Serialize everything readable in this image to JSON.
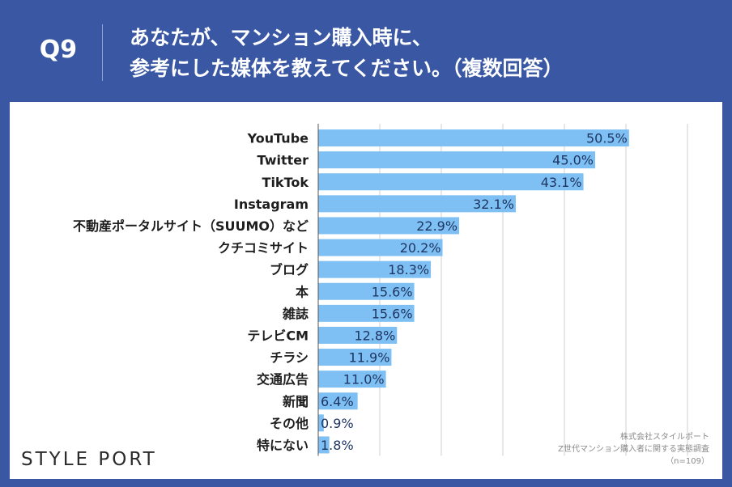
{
  "header": {
    "q_label": "Q9",
    "title_line1": "あなたが、マンション購入時に、",
    "title_line2": "参考にした媒体を教えてください。（複数回答）"
  },
  "brand": "STYLE PORT",
  "source": {
    "line1": "株式会社スタイルポート",
    "line2": "Z世代マンション購入者に関する実態調査",
    "line3": "（n=109）"
  },
  "colors": {
    "bar": "#7ec0f3",
    "header_bg": "#3a57a4",
    "grid": "#cfcfcf"
  },
  "chart_data": {
    "type": "bar",
    "orientation": "horizontal",
    "title": "",
    "xlabel": "",
    "ylabel": "",
    "xlim": [
      0,
      60
    ],
    "grid": true,
    "categories": [
      "YouTube",
      "Twitter",
      "TikTok",
      "Instagram",
      "不動産ポータルサイト（SUUMO）など",
      "クチコミサイト",
      "ブログ",
      "本",
      "雑誌",
      "テレビCM",
      "チラシ",
      "交通広告",
      "新聞",
      "その他",
      "特にない"
    ],
    "values": [
      50.5,
      45.0,
      43.1,
      32.1,
      22.9,
      20.2,
      18.3,
      15.6,
      15.6,
      12.8,
      11.9,
      11.0,
      6.4,
      0.9,
      1.8
    ],
    "value_labels": [
      "50.5%",
      "45.0%",
      "43.1%",
      "32.1%",
      "22.9%",
      "20.2%",
      "18.3%",
      "15.6%",
      "15.6%",
      "12.8%",
      "11.9%",
      "11.0%",
      "6.4%",
      "0.9%",
      "1.8%"
    ]
  }
}
